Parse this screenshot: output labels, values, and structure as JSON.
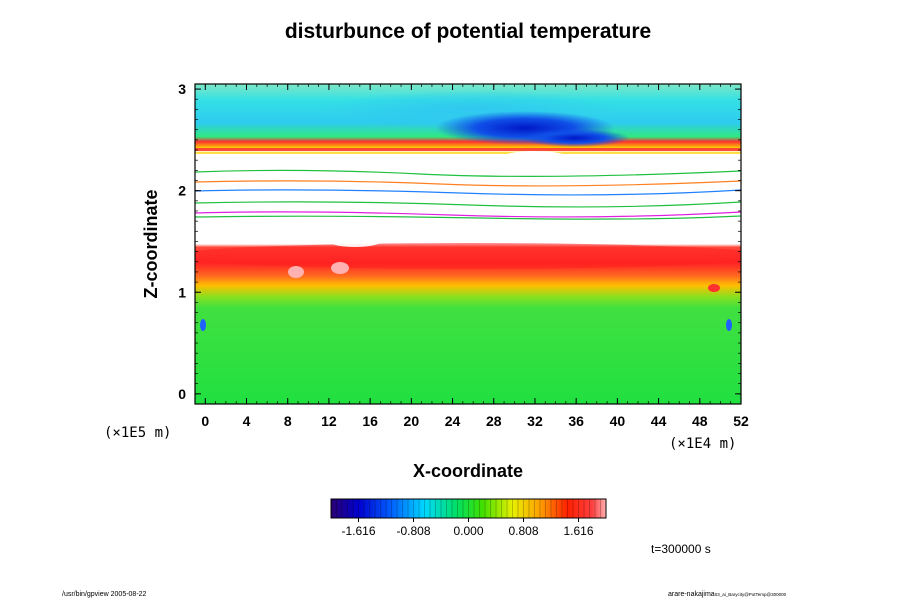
{
  "chart_data": {
    "type": "heatmap",
    "title": "disturbunce of potential temperature",
    "xlabel": "X-coordinate",
    "ylabel": "Z-coordinate",
    "x_unit": "(×1E4 m)",
    "y_unit": "(×1E5 m)",
    "xlim": [
      -1,
      52
    ],
    "ylim": [
      -0.1,
      3.05
    ],
    "x_ticks": [
      0,
      4,
      8,
      12,
      16,
      20,
      24,
      28,
      32,
      36,
      40,
      44,
      48,
      52
    ],
    "y_ticks": [
      0,
      1,
      2,
      3
    ],
    "x_tick_labels": [
      "0",
      "4",
      "8",
      "12",
      "16",
      "20",
      "24",
      "28",
      "32",
      "36",
      "40",
      "44",
      "48",
      "52"
    ],
    "y_tick_labels": [
      "0",
      "1",
      "2",
      "3"
    ],
    "colorbar": {
      "range": [
        -2.02,
        2.02
      ],
      "tick_values": [
        -1.616,
        -0.808,
        0.0,
        0.808,
        1.616
      ],
      "tick_labels": [
        "-1.616",
        "-0.808",
        "0.000",
        "0.808",
        "1.616"
      ]
    },
    "field_description": "z-dependent disturbance field: near zero (green) below z≈1.0, strong positive (red) band z≈1.2–1.5, undefined (white) gap z≈1.5–2.4 with thin multicolour streaks, positive streaks near z≈2.4, negative (blue) region around x≈28 at z≈2.5–2.8, cyan/green above"
  },
  "annotations": {
    "time": "t=300000 s",
    "footer_left": "/usr/bin/gpview 2005-08-22",
    "footer_right_main": "arare-nakajima",
    "footer_right_small": "03_ai_Barycity@PotTemp@300000"
  }
}
